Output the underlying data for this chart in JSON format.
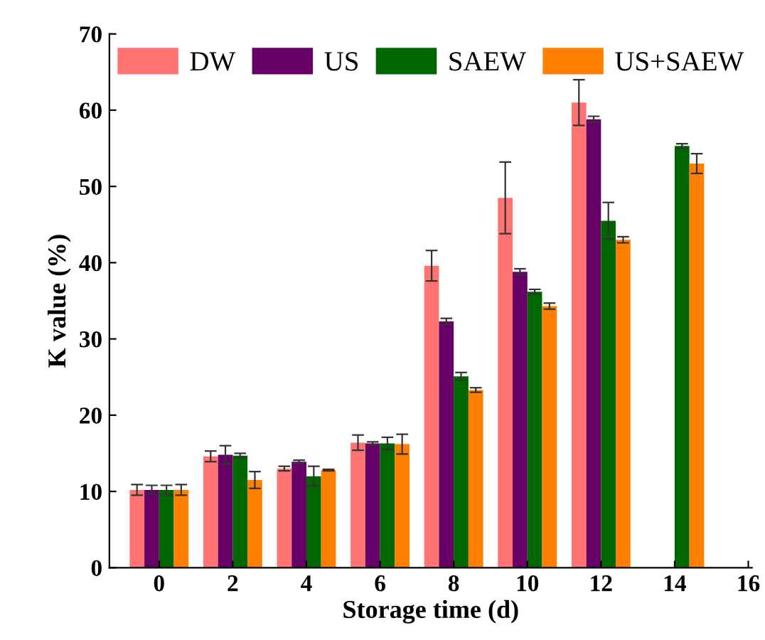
{
  "chart_data": {
    "type": "bar",
    "xlabel": "Storage time (d)",
    "ylabel": "K value (%)",
    "x": [
      0,
      2,
      4,
      6,
      8,
      10,
      12,
      14
    ],
    "series": [
      {
        "name": "DW",
        "color": "#ff7373",
        "values": [
          10.2,
          14.6,
          13.0,
          16.4,
          39.6,
          48.5,
          61.0,
          null
        ],
        "errors": [
          0.7,
          0.7,
          0.3,
          1.0,
          2.0,
          4.7,
          3.0,
          null
        ]
      },
      {
        "name": "US",
        "color": "#660066",
        "values": [
          10.2,
          14.8,
          13.9,
          16.3,
          32.3,
          38.8,
          58.8,
          null
        ],
        "errors": [
          0.6,
          1.2,
          0.2,
          0.2,
          0.4,
          0.4,
          0.4,
          null
        ]
      },
      {
        "name": "SAEW",
        "color": "#006600",
        "values": [
          10.2,
          14.7,
          12.0,
          16.3,
          25.1,
          36.2,
          45.5,
          55.3
        ],
        "errors": [
          0.6,
          0.3,
          1.3,
          0.8,
          0.5,
          0.3,
          2.4,
          0.3
        ]
      },
      {
        "name": "US+SAEW",
        "color": "#ff8000",
        "values": [
          10.2,
          11.5,
          12.8,
          16.2,
          23.3,
          34.3,
          43.0,
          53.0
        ],
        "errors": [
          0.7,
          1.1,
          0.1,
          1.3,
          0.3,
          0.4,
          0.4,
          1.3
        ]
      }
    ],
    "xlim": [
      -1.35,
      16.1
    ],
    "xticks": [
      0,
      2,
      4,
      6,
      8,
      10,
      12,
      14,
      16
    ],
    "ylim": [
      0,
      70
    ],
    "yticks": [
      0,
      10,
      20,
      30,
      40,
      50,
      60,
      70
    ],
    "grid": false,
    "legend": "top"
  }
}
